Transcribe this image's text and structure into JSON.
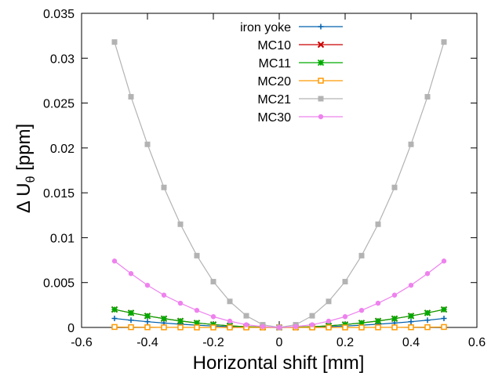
{
  "chart_data": {
    "type": "line",
    "xlabel": "Horizontal shift [mm]",
    "ylabel_main": "Δ U",
    "ylabel_sub": "θ",
    "ylabel_unit": " [ppm]",
    "xlim": [
      -0.6,
      0.6
    ],
    "ylim": [
      0,
      0.035
    ],
    "x_ticks": [
      -0.6,
      -0.4,
      -0.2,
      0,
      0.2,
      0.4,
      0.6
    ],
    "x_tick_labels": [
      "-0.6",
      "-0.4",
      "-0.2",
      "0",
      "0.2",
      "0.4",
      "0.6"
    ],
    "y_ticks": [
      0,
      0.005,
      0.01,
      0.015,
      0.02,
      0.025,
      0.03,
      0.035
    ],
    "y_tick_labels": [
      "0",
      "0.005",
      "0.01",
      "0.015",
      "0.02",
      "0.025",
      "0.03",
      "0.035"
    ],
    "grid": false,
    "legend_position": "top-right",
    "x": [
      -0.5,
      -0.45,
      -0.4,
      -0.35,
      -0.3,
      -0.25,
      -0.2,
      -0.15,
      -0.1,
      -0.05,
      0,
      0.05,
      0.1,
      0.15,
      0.2,
      0.25,
      0.3,
      0.35,
      0.4,
      0.45,
      0.5
    ],
    "series": [
      {
        "name": "iron yoke",
        "color": "#0060ad",
        "marker": "plus",
        "values": [
          0.001,
          0.00081,
          0.00064,
          0.00049,
          0.00036,
          0.00025,
          0.00016,
          9e-05,
          4e-05,
          1e-05,
          0,
          1e-05,
          4e-05,
          9e-05,
          0.00016,
          0.00025,
          0.00036,
          0.00049,
          0.00064,
          0.00081,
          0.001
        ]
      },
      {
        "name": "MC10",
        "color": "#cc0000",
        "marker": "cross",
        "values": [
          0.002,
          0.00162,
          0.00128,
          0.00098,
          0.00072,
          0.0005,
          0.00032,
          0.00018,
          8e-05,
          2e-05,
          0,
          2e-05,
          8e-05,
          0.00018,
          0.00032,
          0.0005,
          0.00072,
          0.00098,
          0.00128,
          0.00162,
          0.002
        ]
      },
      {
        "name": "MC11",
        "color": "#00aa00",
        "marker": "star",
        "values": [
          0.002,
          0.00162,
          0.00128,
          0.00098,
          0.00072,
          0.0005,
          0.00032,
          0.00018,
          8e-05,
          2e-05,
          0,
          2e-05,
          8e-05,
          0.00018,
          0.00032,
          0.0005,
          0.00072,
          0.00098,
          0.00128,
          0.00162,
          0.002
        ]
      },
      {
        "name": "MC20",
        "color": "#ff9900",
        "marker": "open-square",
        "values": [
          5e-05,
          3e-05,
          2e-05,
          1e-05,
          1e-05,
          0,
          0,
          0,
          0,
          0,
          0,
          0,
          0,
          0,
          0,
          0,
          1e-05,
          1e-05,
          2e-05,
          3e-05,
          5e-05
        ]
      },
      {
        "name": "MC21",
        "color": "#b3b3b3",
        "marker": "filled-square",
        "values": [
          0.0318,
          0.0257,
          0.0204,
          0.0156,
          0.0115,
          0.008,
          0.0051,
          0.0029,
          0.0013,
          0.0003,
          0,
          0.0003,
          0.0013,
          0.0029,
          0.0051,
          0.008,
          0.0115,
          0.0156,
          0.0204,
          0.0257,
          0.0318
        ]
      },
      {
        "name": "MC30",
        "color": "#ee82ee",
        "marker": "filled-circle",
        "values": [
          0.0074,
          0.006,
          0.0047,
          0.0036,
          0.0027,
          0.0019,
          0.0012,
          0.0007,
          0.0003,
          0.0001,
          0,
          0.0001,
          0.0003,
          0.0007,
          0.0012,
          0.0019,
          0.0027,
          0.0036,
          0.0047,
          0.006,
          0.0074
        ]
      }
    ]
  }
}
